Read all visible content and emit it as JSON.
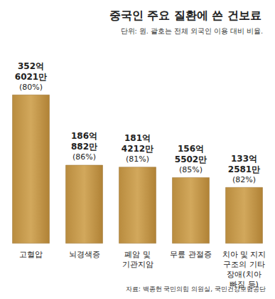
{
  "chart_data": {
    "type": "bar",
    "title": "중국인 주요 질환에 쓴 건보료",
    "subtitle": "단위: 원. 괄호는 전체 외국인 이용 대비 비율.",
    "source": "자료: 백종헌 국민의힘 의원실, 국민건강보험공단",
    "categories": [
      "고혈압",
      "뇌경색증",
      "폐암 및 기관지암",
      "무릎 관절증",
      "치아 및 지지 구조의 기타 장애(치아 빠짐 등)"
    ],
    "values": [
      35260210000,
      18608820000,
      18142120000,
      15655020000,
      13325810000
    ],
    "value_labels": [
      "352억 6021만",
      "186억 882만",
      "181억 4212만",
      "156억 5502만",
      "133억 2581만"
    ],
    "shares": [
      80,
      86,
      81,
      85,
      82
    ],
    "share_labels": [
      "(80%)",
      "(86%)",
      "(81%)",
      "(85%)",
      "(82%)"
    ],
    "color": "#d2a85c",
    "ylim": [
      0,
      40000000000
    ],
    "grid": false,
    "data_labels": true,
    "tick_labels": "x"
  }
}
